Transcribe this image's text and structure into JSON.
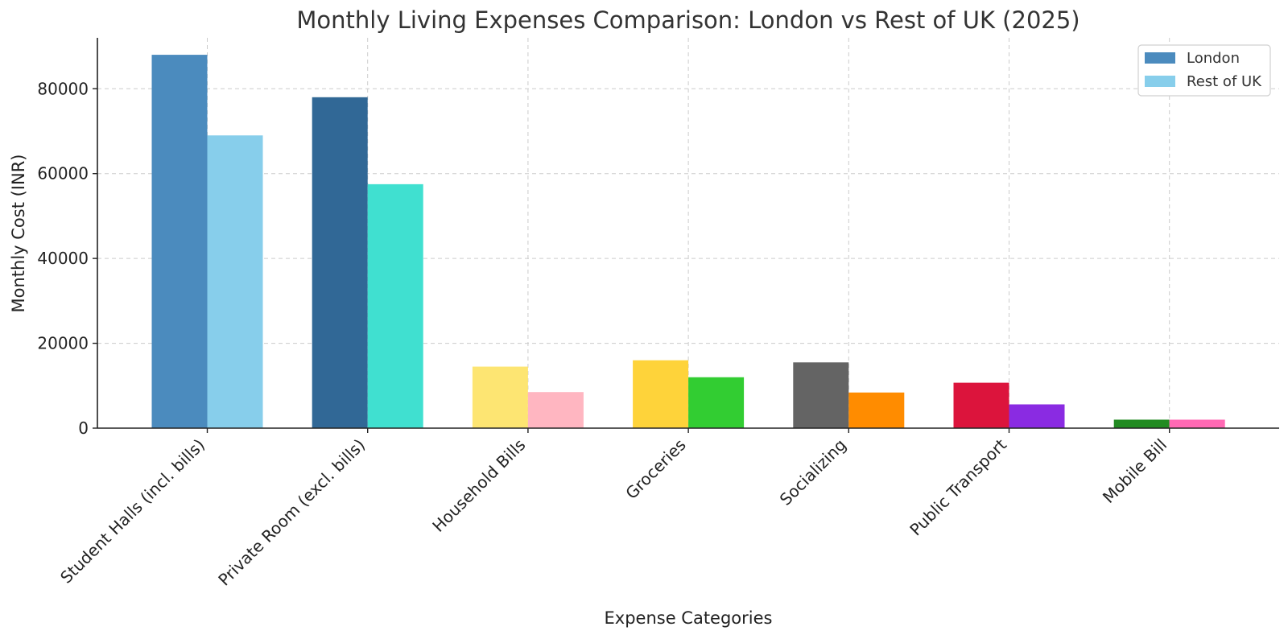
{
  "chart_data": {
    "type": "bar",
    "title": "Monthly Living Expenses Comparison: London vs Rest of UK (2025)",
    "xlabel": "Expense Categories",
    "ylabel": "Monthly Cost (INR)",
    "ylim": [
      0,
      92000
    ],
    "yticks": [
      0,
      20000,
      40000,
      60000,
      80000
    ],
    "grid": true,
    "legend_position": "top-right",
    "categories": [
      "Student Halls (incl. bills)",
      "Private Room (excl. bills)",
      "Household Bills",
      "Groceries",
      "Socializing",
      "Public Transport",
      "Mobile Bill"
    ],
    "series": [
      {
        "name": "London",
        "legend_color": "#4b8bbe",
        "values": [
          88000,
          78000,
          14500,
          16000,
          15500,
          10700,
          2000
        ],
        "colors": [
          "#4b8bbe",
          "#316896",
          "#fde572",
          "#fed33a",
          "#646464",
          "#dc143c",
          "#228b22"
        ]
      },
      {
        "name": "Rest of UK",
        "legend_color": "#87ceeb",
        "values": [
          69000,
          57500,
          8500,
          12000,
          8400,
          5600,
          2000
        ],
        "colors": [
          "#87ceeb",
          "#40e0d0",
          "#ffb6c1",
          "#32cd32",
          "#ff8c00",
          "#8a2be2",
          "#ff69b4"
        ]
      }
    ]
  }
}
